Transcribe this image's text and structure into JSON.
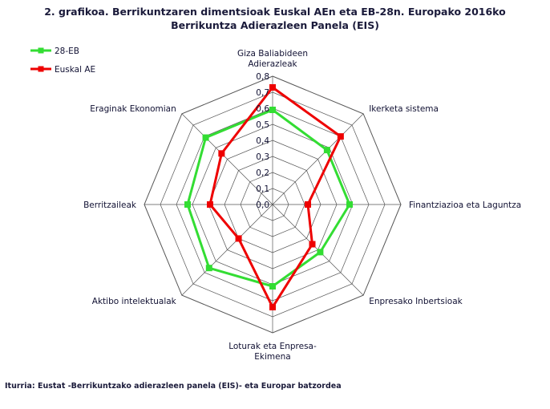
{
  "title": {
    "line1": "2. grafikoa. Berrikuntzaren dimentsioak Euskal AEn eta EB-28n. Europako 2016ko",
    "line2": "Berrikuntza Adierazleen Panela (EIS)"
  },
  "source": "Iturria: Eustat -Berrikuntzako adierazleen panela (EIS)- eta Europar batzordea",
  "chart_data": {
    "type": "radar",
    "categories": [
      [
        "Giza Baliabideen",
        "Adierazleak"
      ],
      [
        "Ikerketa sistema"
      ],
      [
        "Finantziazioa eta Laguntza"
      ],
      [
        "Enpresako Inbertsioak"
      ],
      [
        "Loturak eta Enpresa-",
        "Ekimena"
      ],
      [
        "Aktibo intelektualak"
      ],
      [
        "Berritzaileak"
      ],
      [
        "Eraginak Ekonomian"
      ]
    ],
    "r_ticks": [
      "0,0",
      "0,1",
      "0,2",
      "0,3",
      "0,4",
      "0,5",
      "0,6",
      "0,7",
      "0,8"
    ],
    "rlim": [
      0,
      0.8
    ],
    "legend_position": "top-left",
    "series": [
      {
        "name": "28-EB",
        "color": "#33dd33",
        "values": [
          0.59,
          0.48,
          0.48,
          0.42,
          0.51,
          0.56,
          0.53,
          0.59
        ]
      },
      {
        "name": "Euskal AE",
        "color": "#ee0000",
        "values": [
          0.73,
          0.6,
          0.22,
          0.35,
          0.64,
          0.3,
          0.39,
          0.45
        ]
      }
    ]
  }
}
